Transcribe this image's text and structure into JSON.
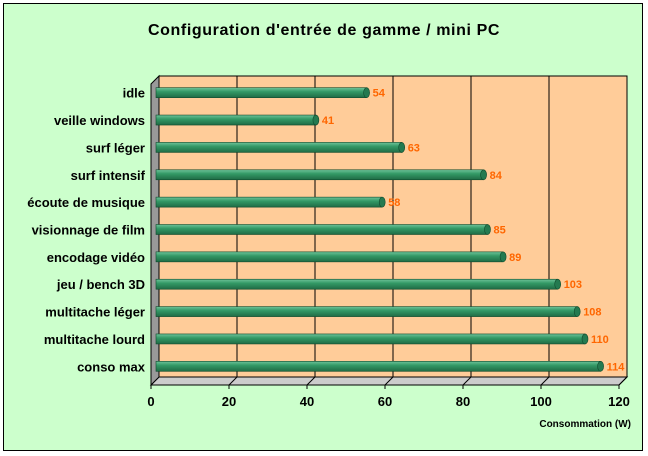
{
  "chart_data": {
    "type": "bar",
    "orientation": "horizontal",
    "title": "Configuration d'entrée de gamme / mini PC",
    "xlabel": "Consommation (W)",
    "ylabel": "",
    "categories": [
      "idle",
      "veille windows",
      "surf léger",
      "surf intensif",
      "écoute de musique",
      "visionnage de film",
      "encodage vidéo",
      "jeu / bench 3D",
      "multitache léger",
      "multitache lourd",
      "conso max"
    ],
    "values": [
      54,
      41,
      63,
      84,
      58,
      85,
      89,
      103,
      108,
      110,
      114
    ],
    "xlim": [
      0,
      120
    ],
    "xticks": [
      0,
      20,
      40,
      60,
      80,
      100,
      120
    ],
    "grid": true,
    "legend": "none",
    "colors": {
      "background": "#ccffcc",
      "plot_area": "#ffcc99",
      "bar": "#339966",
      "value_label": "#ff6600"
    }
  }
}
